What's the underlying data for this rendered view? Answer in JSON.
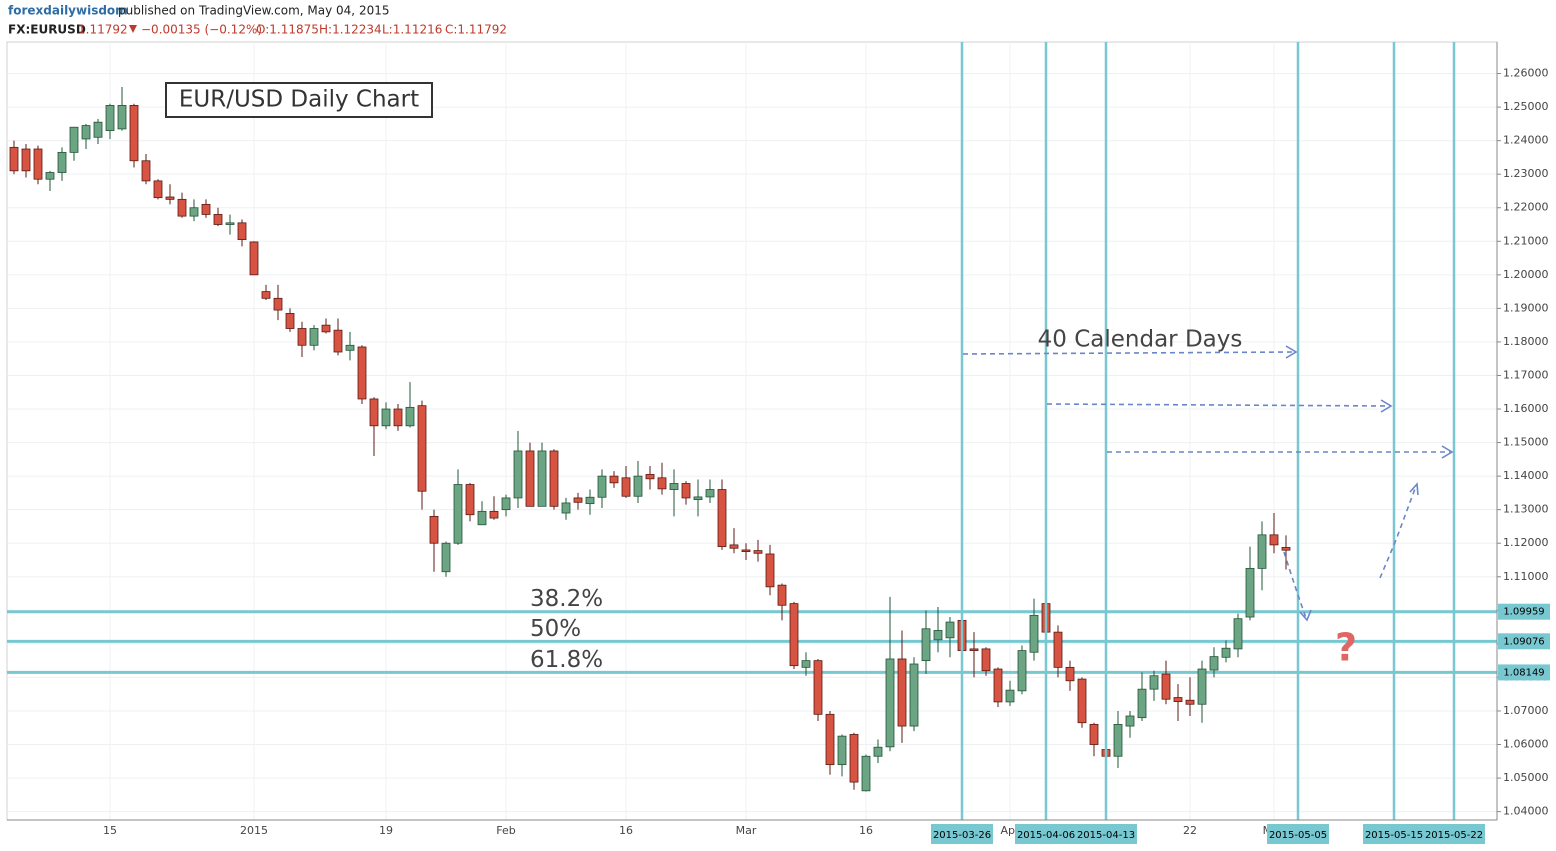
{
  "header": {
    "author": "forexdailywisdom",
    "published": "published on TradingView.com, May 04, 2015",
    "symbol": "FX:EURUSD",
    "last": "1.11792",
    "change": "−0.00135 (−0.12%)",
    "open": "O:1.11875",
    "high": "H:1.12234",
    "low": "L:1.11216",
    "close": "C:1.11792"
  },
  "chart_data": {
    "type": "candlestick",
    "title": "EUR/USD Daily Chart",
    "annotations": {
      "days": "40 Calendar Days",
      "question": "?"
    },
    "categories": [
      null,
      null,
      null,
      null,
      null,
      null,
      null,
      null,
      "15",
      null,
      null,
      null,
      null,
      null,
      null,
      null,
      null,
      null,
      null,
      null,
      "2015",
      null,
      null,
      null,
      null,
      null,
      null,
      null,
      null,
      null,
      null,
      "19",
      null,
      null,
      null,
      null,
      null,
      null,
      null,
      null,
      null,
      "Feb",
      null,
      null,
      null,
      null,
      null,
      null,
      null,
      null,
      null,
      "16",
      null,
      null,
      null,
      null,
      null,
      null,
      null,
      null,
      null,
      "Mar",
      null,
      null,
      null,
      null,
      null,
      null,
      null,
      null,
      null,
      "16",
      null,
      null,
      null,
      null,
      null,
      null,
      null,
      "2015-03-26",
      null,
      null,
      null,
      "Apr",
      null,
      null,
      "2015-04-06",
      null,
      null,
      null,
      null,
      "2015-04-13",
      null,
      null,
      null,
      null,
      null,
      null,
      "22",
      null,
      null,
      null,
      null,
      null,
      null,
      "May",
      null,
      "2015-05-05",
      null,
      null,
      null,
      null,
      null,
      null,
      null,
      "2015-05-15",
      null,
      null,
      null,
      null,
      "2015-05-22",
      null,
      null
    ],
    "open": [
      1.238,
      1.2375,
      1.2375,
      1.2285,
      1.2305,
      1.2365,
      1.2405,
      1.241,
      1.243,
      1.2435,
      1.2505,
      1.234,
      1.228,
      1.2232,
      1.2225,
      1.2175,
      1.221,
      1.218,
      1.215,
      1.2155,
      1.2098,
      1.195,
      1.193,
      1.1885,
      1.184,
      1.179,
      1.185,
      1.1835,
      1.1775,
      1.1785,
      1.163,
      1.155,
      1.16,
      1.155,
      1.161,
      1.128,
      1.1115,
      1.12,
      1.1375,
      1.1255,
      1.1295,
      1.13,
      1.1335,
      1.1475,
      1.131,
      1.1475,
      1.129,
      1.1335,
      1.1318,
      1.1337,
      1.14,
      1.1395,
      1.134,
      1.1405,
      1.1395,
      1.136,
      1.1378,
      1.133,
      1.1338,
      1.136,
      1.1195,
      1.118,
      1.1178,
      1.1168,
      1.1075,
      1.102,
      1.083,
      1.085,
      1.069,
      1.054,
      1.063,
      1.0462,
      1.0565,
      1.0593,
      1.0855,
      1.0655,
      1.085,
      1.0912,
      1.0918,
      1.097,
      1.0885,
      1.0885,
      1.0825,
      1.0727,
      1.076,
      1.0875,
      1.102,
      1.0935,
      1.083,
      1.0795,
      1.066,
      1.0585,
      1.0565,
      1.0655,
      1.068,
      1.0765,
      1.081,
      1.074,
      1.0732,
      1.072,
      1.0822,
      1.086,
      1.0885,
      1.098,
      1.1125,
      1.1225,
      1.11875,
      null,
      null,
      null,
      null,
      null,
      null,
      null,
      null,
      null,
      null,
      null,
      null,
      null,
      null,
      null,
      null
    ],
    "high": [
      1.24,
      1.239,
      1.2385,
      1.231,
      1.238,
      1.244,
      1.245,
      1.2465,
      1.251,
      1.256,
      1.251,
      1.236,
      1.2285,
      1.227,
      1.2245,
      1.2225,
      1.2225,
      1.22,
      1.218,
      1.2165,
      1.21,
      1.197,
      1.197,
      1.19,
      1.186,
      1.185,
      1.187,
      1.187,
      1.183,
      1.179,
      1.1635,
      1.162,
      1.1615,
      1.168,
      1.1625,
      1.13,
      1.1205,
      1.142,
      1.138,
      1.1325,
      1.134,
      1.1345,
      1.1535,
      1.15,
      1.15,
      1.148,
      1.1335,
      1.135,
      1.136,
      1.142,
      1.1415,
      1.143,
      1.1445,
      1.143,
      1.144,
      1.142,
      1.1385,
      1.139,
      1.139,
      1.139,
      1.1245,
      1.12,
      1.121,
      1.1195,
      1.108,
      1.1025,
      1.0875,
      1.0855,
      1.07,
      1.063,
      1.0635,
      1.057,
      1.0615,
      1.104,
      1.094,
      1.086,
      1.1,
      1.101,
      1.098,
      1.103,
      1.0935,
      1.089,
      1.083,
      1.079,
      1.0895,
      1.1035,
      1.1035,
      1.0955,
      1.085,
      1.08,
      1.0665,
      1.0625,
      1.07,
      1.07,
      1.0815,
      1.082,
      1.085,
      1.078,
      1.08,
      1.085,
      1.089,
      1.091,
      1.099,
      1.119,
      1.1265,
      1.129,
      1.12234,
      null,
      null,
      null,
      null,
      null,
      null,
      null,
      null,
      null,
      null,
      null,
      null,
      null,
      null,
      null,
      null
    ],
    "low": [
      1.23,
      1.229,
      1.227,
      1.225,
      1.228,
      1.234,
      1.2375,
      1.239,
      1.2405,
      1.243,
      1.232,
      1.227,
      1.2225,
      1.221,
      1.217,
      1.216,
      1.217,
      1.2145,
      1.212,
      1.2085,
      1.2,
      1.1925,
      1.1865,
      1.183,
      1.1755,
      1.1775,
      1.1825,
      1.176,
      1.1745,
      1.1615,
      1.146,
      1.154,
      1.1535,
      1.1545,
      1.13,
      1.1115,
      1.11,
      1.1195,
      1.1265,
      1.1255,
      1.127,
      1.128,
      1.1305,
      1.131,
      1.131,
      1.13,
      1.127,
      1.13,
      1.1285,
      1.1305,
      1.1365,
      1.1335,
      1.132,
      1.136,
      1.1345,
      1.128,
      1.1315,
      1.128,
      1.132,
      1.118,
      1.117,
      1.115,
      1.1145,
      1.1045,
      1.097,
      1.0825,
      1.0805,
      1.067,
      1.051,
      1.0505,
      1.0465,
      1.046,
      1.0545,
      1.058,
      1.0605,
      1.064,
      1.081,
      1.0875,
      1.086,
      1.083,
      1.08,
      1.0805,
      1.0712,
      1.0715,
      1.075,
      1.085,
      1.0925,
      1.08,
      1.076,
      1.065,
      1.0565,
      1.052,
      1.053,
      1.062,
      1.067,
      1.073,
      1.072,
      1.067,
      1.0685,
      1.0665,
      1.08,
      1.0845,
      1.086,
      1.097,
      1.106,
      1.117,
      1.11216,
      null,
      null,
      null,
      null,
      null,
      null,
      null,
      null,
      null,
      null,
      null,
      null,
      null,
      null,
      null,
      null
    ],
    "close": [
      1.231,
      1.231,
      1.2285,
      1.2305,
      1.2365,
      1.244,
      1.2445,
      1.2455,
      1.2505,
      1.2505,
      1.234,
      1.228,
      1.223,
      1.2225,
      1.2175,
      1.22,
      1.218,
      1.215,
      1.2155,
      1.2105,
      1.2,
      1.193,
      1.1895,
      1.184,
      1.179,
      1.184,
      1.183,
      1.177,
      1.179,
      1.163,
      1.155,
      1.16,
      1.155,
      1.1605,
      1.1355,
      1.12,
      1.12,
      1.1375,
      1.1285,
      1.1295,
      1.1275,
      1.1335,
      1.1475,
      1.131,
      1.1475,
      1.131,
      1.132,
      1.1322,
      1.1337,
      1.14,
      1.138,
      1.134,
      1.14,
      1.1392,
      1.1362,
      1.1378,
      1.1335,
      1.1338,
      1.136,
      1.119,
      1.1185,
      1.1175,
      1.117,
      1.107,
      1.1015,
      1.0835,
      1.085,
      1.069,
      1.054,
      1.0625,
      1.0488,
      1.0565,
      1.0592,
      1.0855,
      1.0655,
      1.084,
      1.0945,
      1.094,
      1.0965,
      1.088,
      1.088,
      1.082,
      1.0727,
      1.0762,
      1.088,
      1.0985,
      1.0935,
      1.083,
      1.079,
      1.0665,
      1.06,
      1.0565,
      1.066,
      1.0685,
      1.0765,
      1.0805,
      1.0735,
      1.0728,
      1.072,
      1.0825,
      1.0862,
      1.0887,
      1.0975,
      1.1125,
      1.1225,
      1.1195,
      1.11792,
      null,
      null,
      null,
      null,
      null,
      null,
      null,
      null,
      null,
      null,
      null,
      null,
      null,
      null,
      null,
      null
    ],
    "up_color": "#6ba583",
    "down_color": "#d75442",
    "levels": [
      {
        "label": "38.2%",
        "value": 1.09959
      },
      {
        "label": "50%",
        "value": 1.09076
      },
      {
        "label": "61.8%",
        "value": 1.08149
      }
    ],
    "marker_color": "#78c8d2",
    "ylim": [
      1.0375,
      1.2694
    ],
    "yticks": [
      {
        "value": 1.04,
        "label": "1.04000"
      },
      {
        "value": 1.05,
        "label": "1.05000"
      },
      {
        "value": 1.06,
        "label": "1.06000"
      },
      {
        "value": 1.07,
        "label": "1.07000"
      },
      {
        "value": 1.08,
        "label": "1.08000"
      },
      {
        "value": 1.09,
        "label": "1.09000"
      },
      {
        "value": 1.1,
        "label": "1.10000"
      },
      {
        "value": 1.11,
        "label": "1.11000"
      },
      {
        "value": 1.12,
        "label": "1.12000"
      },
      {
        "value": 1.13,
        "label": "1.13000"
      },
      {
        "value": 1.14,
        "label": "1.14000"
      },
      {
        "value": 1.15,
        "label": "1.15000"
      },
      {
        "value": 1.16,
        "label": "1.16000"
      },
      {
        "value": 1.17,
        "label": "1.17000"
      },
      {
        "value": 1.18,
        "label": "1.18000"
      },
      {
        "value": 1.19,
        "label": "1.19000"
      },
      {
        "value": 1.2,
        "label": "1.20000"
      },
      {
        "value": 1.21,
        "label": "1.21000"
      },
      {
        "value": 1.22,
        "label": "1.22000"
      },
      {
        "value": 1.23,
        "label": "1.23000"
      },
      {
        "value": 1.24,
        "label": "1.24000"
      },
      {
        "value": 1.25,
        "label": "1.25000"
      },
      {
        "value": 1.26,
        "label": "1.26000"
      }
    ],
    "grid": true
  }
}
